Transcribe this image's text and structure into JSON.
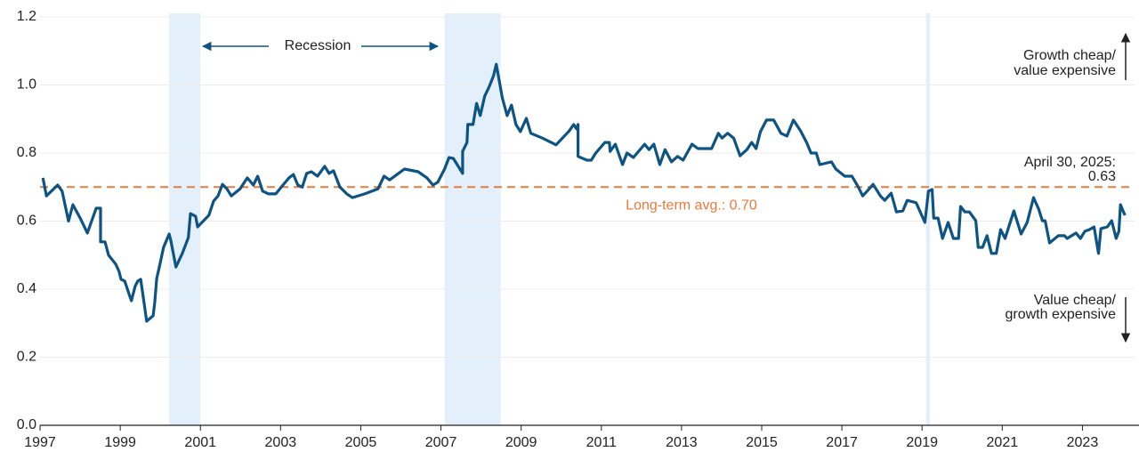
{
  "chart_data": {
    "type": "line",
    "x": [
      1997.07,
      1997.16,
      1997.44,
      1997.55,
      1997.71,
      1997.82,
      1998.0,
      1998.18,
      1998.4,
      1998.51,
      1998.51,
      1998.62,
      1998.71,
      1998.89,
      1998.97,
      1999.02,
      1999.11,
      1999.24,
      1999.28,
      1999.37,
      1999.44,
      1999.51,
      1999.6,
      1999.66,
      1999.82,
      1999.86,
      1999.91,
      1999.99,
      2000.08,
      2000.22,
      2000.26,
      2000.39,
      2000.55,
      2000.7,
      2000.75,
      2000.88,
      2000.93,
      2001.21,
      2001.33,
      2001.44,
      2001.55,
      2001.66,
      2001.77,
      2001.99,
      2002.17,
      2002.32,
      2002.43,
      2002.55,
      2002.7,
      2002.88,
      2003.06,
      2003.21,
      2003.32,
      2003.43,
      2003.54,
      2003.65,
      2003.77,
      2003.92,
      2004.1,
      2004.21,
      2004.32,
      2004.48,
      2004.65,
      2004.79,
      2005.1,
      2005.43,
      2005.58,
      2005.72,
      2005.94,
      2006.09,
      2006.43,
      2006.65,
      2006.8,
      2006.92,
      2007.09,
      2007.2,
      2007.31,
      2007.54,
      2007.54,
      2007.65,
      2007.67,
      2007.8,
      2007.89,
      2007.98,
      2008.09,
      2008.2,
      2008.31,
      2008.38,
      2008.53,
      2008.65,
      2008.76,
      2008.87,
      2008.98,
      2009.13,
      2009.24,
      2009.53,
      2009.87,
      2010.2,
      2010.31,
      2010.38,
      2010.42,
      2010.42,
      2010.64,
      2010.75,
      2010.86,
      2011.09,
      2011.2,
      2011.22,
      2011.35,
      2011.53,
      2011.64,
      2011.8,
      2012.08,
      2012.19,
      2012.31,
      2012.46,
      2012.59,
      2012.75,
      2012.9,
      2013.04,
      2013.26,
      2013.41,
      2013.75,
      2013.92,
      2014.01,
      2014.15,
      2014.3,
      2014.46,
      2014.63,
      2014.75,
      2014.86,
      2014.97,
      2015.12,
      2015.3,
      2015.48,
      2015.63,
      2015.79,
      2015.97,
      2016.12,
      2016.23,
      2016.36,
      2016.45,
      2016.74,
      2016.85,
      2017.07,
      2017.25,
      2017.41,
      2017.52,
      2017.63,
      2017.78,
      2017.96,
      2018.07,
      2018.23,
      2018.36,
      2018.52,
      2018.63,
      2018.85,
      2019.07,
      2019.16,
      2019.25,
      2019.29,
      2019.4,
      2019.51,
      2019.65,
      2019.78,
      2019.91,
      2019.96,
      2020.07,
      2020.18,
      2020.34,
      2020.4,
      2020.51,
      2020.62,
      2020.73,
      2020.85,
      2020.96,
      2021.07,
      2021.29,
      2021.47,
      2021.62,
      2021.78,
      2021.91,
      2022.0,
      2022.07,
      2022.18,
      2022.4,
      2022.55,
      2022.62,
      2022.84,
      2022.95,
      2023.06,
      2023.17,
      2023.29,
      2023.4,
      2023.46,
      2023.62,
      2023.73,
      2023.84,
      2023.91,
      2023.95,
      2024.06
    ],
    "series": [
      {
        "color": "#0d5383",
        "values": [
          0.727,
          0.674,
          0.706,
          0.688,
          0.6,
          0.648,
          0.609,
          0.565,
          0.638,
          0.638,
          0.539,
          0.539,
          0.5,
          0.473,
          0.452,
          0.429,
          0.424,
          0.379,
          0.366,
          0.408,
          0.424,
          0.429,
          0.356,
          0.306,
          0.322,
          0.361,
          0.431,
          0.473,
          0.523,
          0.562,
          0.544,
          0.465,
          0.505,
          0.552,
          0.622,
          0.614,
          0.583,
          0.617,
          0.659,
          0.674,
          0.708,
          0.695,
          0.674,
          0.695,
          0.727,
          0.706,
          0.732,
          0.688,
          0.68,
          0.68,
          0.706,
          0.727,
          0.737,
          0.706,
          0.7,
          0.74,
          0.745,
          0.732,
          0.761,
          0.74,
          0.748,
          0.7,
          0.68,
          0.669,
          0.68,
          0.695,
          0.732,
          0.721,
          0.74,
          0.753,
          0.745,
          0.727,
          0.706,
          0.714,
          0.753,
          0.787,
          0.784,
          0.74,
          0.805,
          0.831,
          0.884,
          0.884,
          0.946,
          0.91,
          0.967,
          0.994,
          1.027,
          1.061,
          0.962,
          0.91,
          0.941,
          0.884,
          0.863,
          0.902,
          0.858,
          0.844,
          0.824,
          0.865,
          0.884,
          0.871,
          0.884,
          0.79,
          0.779,
          0.779,
          0.8,
          0.831,
          0.831,
          0.805,
          0.826,
          0.766,
          0.8,
          0.787,
          0.826,
          0.81,
          0.826,
          0.766,
          0.81,
          0.774,
          0.79,
          0.779,
          0.826,
          0.813,
          0.813,
          0.858,
          0.844,
          0.858,
          0.844,
          0.792,
          0.81,
          0.831,
          0.813,
          0.863,
          0.897,
          0.897,
          0.858,
          0.85,
          0.897,
          0.865,
          0.831,
          0.8,
          0.8,
          0.766,
          0.774,
          0.753,
          0.732,
          0.732,
          0.7,
          0.674,
          0.688,
          0.708,
          0.674,
          0.661,
          0.682,
          0.627,
          0.63,
          0.661,
          0.654,
          0.596,
          0.688,
          0.693,
          0.609,
          0.609,
          0.549,
          0.596,
          0.549,
          0.549,
          0.643,
          0.627,
          0.627,
          0.601,
          0.523,
          0.523,
          0.557,
          0.505,
          0.505,
          0.575,
          0.549,
          0.63,
          0.562,
          0.596,
          0.669,
          0.635,
          0.601,
          0.601,
          0.536,
          0.557,
          0.557,
          0.549,
          0.565,
          0.549,
          0.57,
          0.575,
          0.583,
          0.505,
          0.578,
          0.583,
          0.601,
          0.549,
          0.57,
          0.648,
          0.617
        ]
      }
    ],
    "xlim": [
      1997,
      2024.3
    ],
    "xticks": [
      1997,
      1999,
      2001,
      2003,
      2005,
      2007,
      2009,
      2011,
      2013,
      2015,
      2017,
      2019,
      2021,
      2023
    ],
    "ylim": [
      0,
      1.2
    ],
    "yticks": [
      {
        "value": 0,
        "label": "0.0"
      },
      0.2,
      0.4,
      0.6,
      0.8,
      {
        "value": 1,
        "label": "1.0"
      },
      1.2
    ],
    "grid": true,
    "recessions": [
      [
        2000.22,
        2001.0
      ],
      [
        2007.09,
        2008.49
      ],
      [
        2019.1,
        2019.2
      ]
    ],
    "recession_color": "#e3f0fb",
    "recession_label": "Recession",
    "average": {
      "value": 0.7,
      "label": "Long-term avg.: 0.70",
      "color": "#ea7a3a"
    },
    "latest_label": [
      "April 30, 2025:",
      "0.63"
    ],
    "upper_note": [
      "Growth cheap/",
      "value expensive"
    ],
    "lower_note": [
      "Value cheap/",
      "growth expensive"
    ]
  }
}
